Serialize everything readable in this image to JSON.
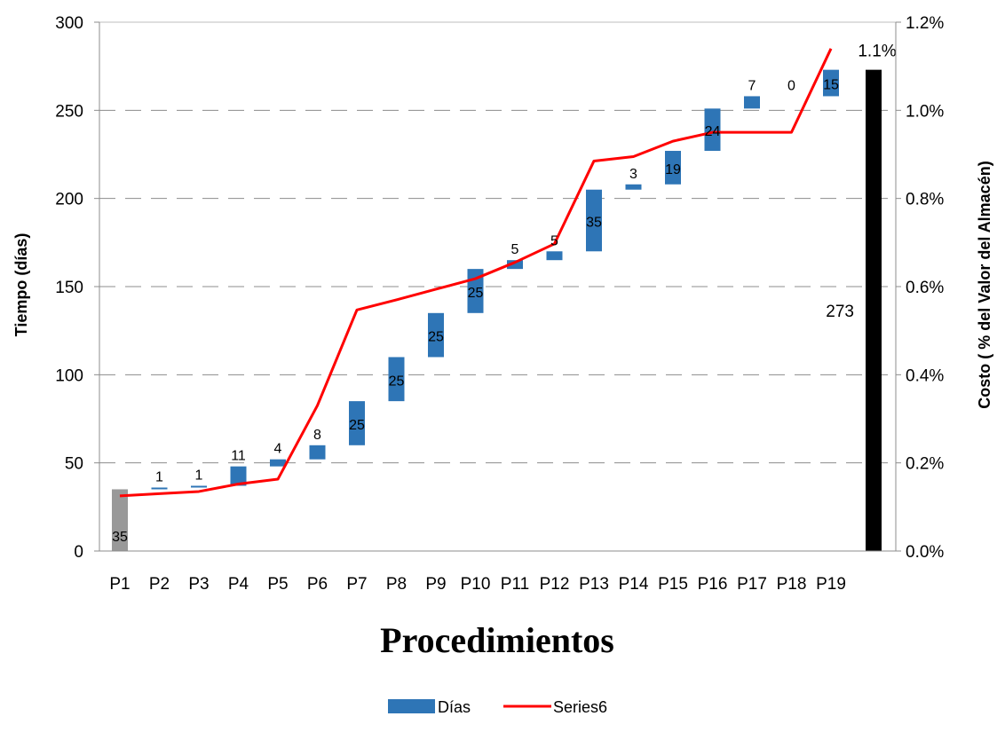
{
  "chart_data": {
    "type": "bar",
    "subtype": "waterfall-with-line",
    "categories": [
      "P1",
      "P2",
      "P3",
      "P4",
      "P5",
      "P6",
      "P7",
      "P8",
      "P9",
      "P10",
      "P11",
      "P12",
      "P13",
      "P14",
      "P15",
      "P16",
      "P17",
      "P18",
      "P19"
    ],
    "series": [
      {
        "name": "Días",
        "color": "#2e75b6",
        "values": [
          35,
          1,
          1,
          11,
          4,
          8,
          25,
          25,
          25,
          25,
          5,
          5,
          35,
          3,
          19,
          24,
          7,
          0,
          15
        ],
        "bases": [
          0,
          35,
          36,
          37,
          48,
          52,
          60,
          85,
          110,
          135,
          160,
          165,
          170,
          205,
          208,
          227,
          251,
          258,
          258
        ]
      },
      {
        "name": "Series6",
        "type": "line",
        "axis": "right",
        "color": "#ff0000",
        "values": [
          0.125,
          0.13,
          0.135,
          0.152,
          0.163,
          0.33,
          0.547,
          0.57,
          0.594,
          0.618,
          0.655,
          0.697,
          0.885,
          0.895,
          0.93,
          0.95,
          0.95,
          0.95,
          1.14
        ]
      }
    ],
    "first_bar_color": "#999999",
    "total_bar": {
      "value": 273,
      "label": "273",
      "cost_label": "1.1%",
      "color": "#000000"
    },
    "ylabel": "Tiempo (días)",
    "ylabel_right": "Costo ( % del Valor del Almacén)",
    "xlabel": "Procedimientos",
    "ylim": [
      0,
      300
    ],
    "yticks": [
      "0",
      "50",
      "100",
      "150",
      "200",
      "250",
      "300"
    ],
    "y2lim": [
      0,
      1.2
    ],
    "y2ticks": [
      "0.0%",
      "0.2%",
      "0.4%",
      "0.6%",
      "0.8%",
      "1.0%",
      "1.2%"
    ],
    "grid": "dashed-horizontal",
    "legend_position": "bottom"
  }
}
